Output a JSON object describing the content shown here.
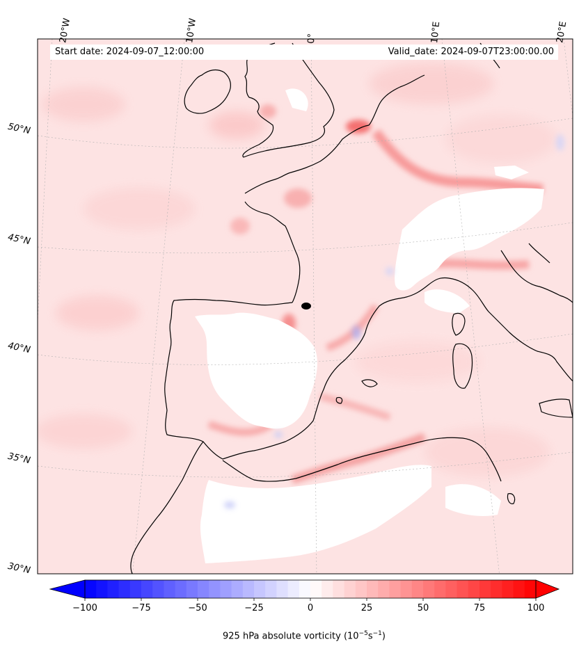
{
  "header": {
    "start_label": "Start date: 2024-09-07_12:00:00",
    "valid_label": "Valid_date: 2024-09-07T23:00:00.00"
  },
  "map": {
    "lon_labels": [
      "20°W",
      "10°W",
      "0°",
      "10°E",
      "20°E"
    ],
    "lat_labels": [
      "50°N",
      "45°N",
      "40°N",
      "35°N",
      "30°N"
    ],
    "land_color": "#ffffff",
    "coast_color": "#000000",
    "gridline_color": "#b0b0b0"
  },
  "colorbar": {
    "min": -100,
    "max": 100,
    "tick_labels": [
      "−100",
      "−75",
      "−50",
      "−25",
      "0",
      "25",
      "50",
      "75",
      "100"
    ],
    "title_prefix": "925 hPa absolute vorticity (10",
    "title_sup1": "−5",
    "title_mid": "s",
    "title_sup2": "−1",
    "title_suffix": ")",
    "low_color": "#0000ff",
    "high_color": "#ff0000"
  }
}
